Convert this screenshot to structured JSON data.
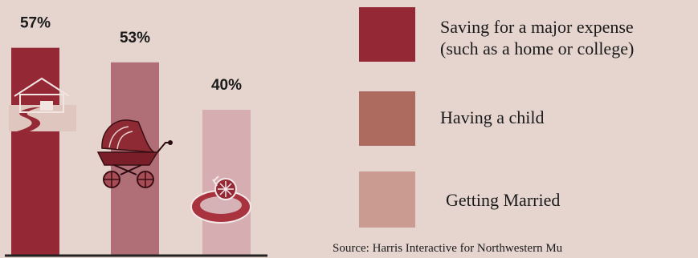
{
  "chart_data": {
    "type": "bar",
    "categories": [
      "Saving for a major expense (such as a home or college)",
      "Having a child",
      "Getting Married"
    ],
    "values": [
      57,
      53,
      40
    ],
    "value_labels": [
      "57%",
      "53%",
      "40%"
    ],
    "colors": [
      "#952835",
      "#b06e77",
      "#d6aeb1"
    ],
    "ylim": [
      0,
      60
    ],
    "grid": false,
    "legend_position": "right",
    "icons": [
      "house-icon",
      "baby-stroller-icon",
      "ring-icon"
    ]
  },
  "legend": {
    "items": [
      {
        "line1": "Saving for a major expense",
        "line2": "(such as a home or college)",
        "color": "#952835"
      },
      {
        "line1": "Having a child",
        "line2": "",
        "color": "#ad6a5f"
      },
      {
        "line1": "Getting Married",
        "line2": "",
        "color": "#c99b91"
      }
    ]
  },
  "source": "Source:  Harris Interactive for Northwestern Mu"
}
